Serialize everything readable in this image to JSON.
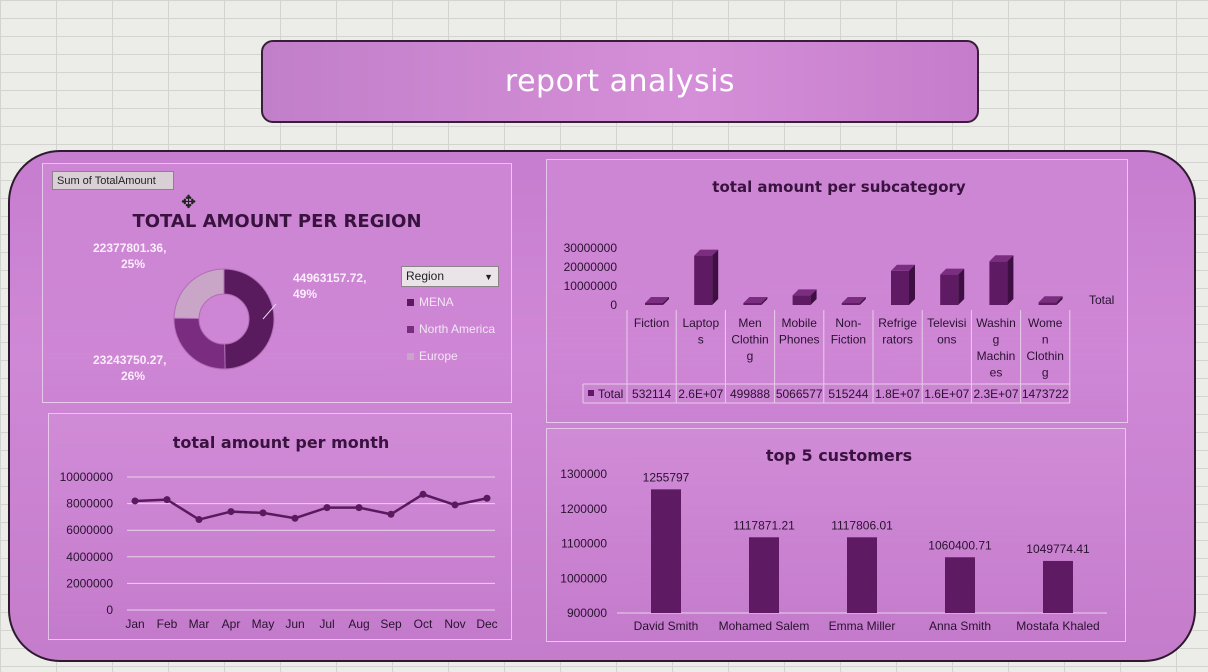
{
  "dashboard_title": "report analysis",
  "filter_button": "Sum of TotalAmount",
  "region_filter": {
    "label": "Region",
    "caret": "▼"
  },
  "colors": {
    "dark": "#5a1a5e",
    "mid": "#7a2d80",
    "light": "#c9a6c8",
    "bar": "#5e1a62"
  },
  "chart_data": [
    {
      "type": "pie",
      "title": "TOTAL AMOUNT PER REGION",
      "slices": [
        {
          "name": "MENA",
          "value": 44963157.72,
          "label": "44963157.72,",
          "pct": "49%"
        },
        {
          "name": "North America",
          "value": 23243750.27,
          "label": "23243750.27,",
          "pct": "26%"
        },
        {
          "name": "Europe",
          "value": 22377801.36,
          "label": "22377801.36,",
          "pct": "25%"
        }
      ],
      "legend": "right"
    },
    {
      "type": "bar",
      "title": "total amount per subcategory",
      "categories": [
        "Fiction",
        "Laptops",
        "Men Clothing",
        "Mobile Phones",
        "Non-Fiction",
        "Refrigerators",
        "Televisions",
        "Washing Machines",
        "Women Clothing"
      ],
      "category_lines": [
        [
          "Fiction"
        ],
        [
          "Laptop",
          "s"
        ],
        [
          "Men",
          "Clothin",
          "g"
        ],
        [
          "Mobile",
          "Phones"
        ],
        [
          "Non-",
          "Fiction"
        ],
        [
          "Refrige",
          "rators"
        ],
        [
          "Televisi",
          "ons"
        ],
        [
          "Washin",
          "g",
          "Machin",
          "es"
        ],
        [
          "Wome",
          "n",
          "Clothin",
          "g"
        ]
      ],
      "values": [
        532114,
        26000000,
        499888,
        5066577,
        515244,
        18000000,
        16000000,
        23000000,
        1473722
      ],
      "table_values": [
        "532114",
        "2.6E+07",
        "499888",
        "5066577",
        "515244",
        "1.8E+07",
        "1.6E+07",
        "2.3E+07",
        "1473722"
      ],
      "series_label": "Total",
      "legend_label": "Total",
      "yticks": [
        "30000000",
        "20000000",
        "10000000",
        "0"
      ],
      "ylim": [
        0,
        30000000
      ]
    },
    {
      "type": "line",
      "title": "total amount per month",
      "categories": [
        "Jan",
        "Feb",
        "Mar",
        "Apr",
        "May",
        "Jun",
        "Jul",
        "Aug",
        "Sep",
        "Oct",
        "Nov",
        "Dec"
      ],
      "values": [
        8200000,
        8300000,
        6800000,
        7400000,
        7300000,
        6900000,
        7700000,
        7700000,
        7200000,
        8700000,
        7900000,
        8400000
      ],
      "yticks": [
        "10000000",
        "8000000",
        "6000000",
        "4000000",
        "2000000",
        "0"
      ],
      "ylim": [
        0,
        10000000
      ]
    },
    {
      "type": "bar",
      "title": "top 5 customers",
      "categories": [
        "David Smith",
        "Mohamed Salem",
        "Emma Miller",
        "Anna Smith",
        "Mostafa Khaled"
      ],
      "values": [
        1255797,
        1117871.21,
        1117806.01,
        1060400.71,
        1049774.41
      ],
      "labels": [
        "1255797",
        "1117871.21",
        "1117806.01",
        "1060400.71",
        "1049774.41"
      ],
      "yticks": [
        "1300000",
        "1200000",
        "1100000",
        "1000000",
        "900000"
      ],
      "ylim": [
        900000,
        1300000
      ]
    }
  ]
}
